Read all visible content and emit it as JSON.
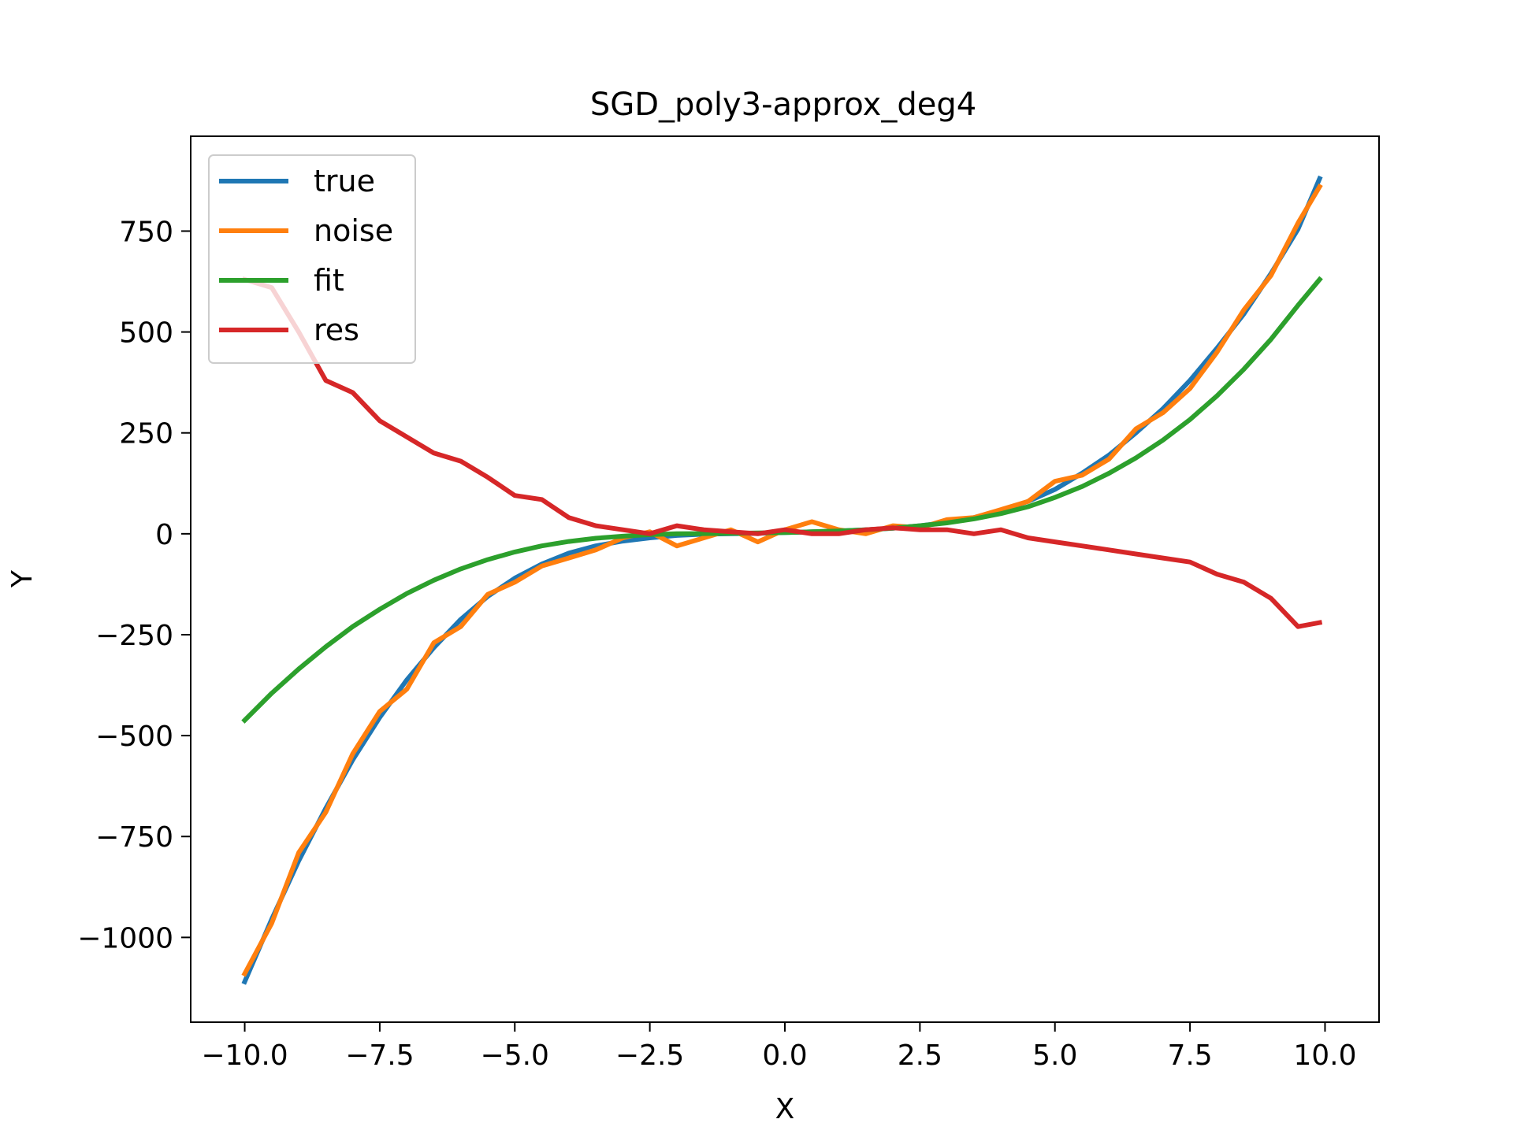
{
  "chart_data": {
    "type": "line",
    "title": "SGD_poly3-approx_deg4",
    "xlabel": "X",
    "ylabel": "Y",
    "xlim": [
      -11.0,
      11.0
    ],
    "ylim": [
      -1210,
      985
    ],
    "xticks": [
      -10.0,
      -7.5,
      -5.0,
      -2.5,
      0.0,
      2.5,
      5.0,
      7.5,
      10.0
    ],
    "xtick_labels": [
      "−10.0",
      "−7.5",
      "−5.0",
      "−2.5",
      "0.0",
      "2.5",
      "5.0",
      "7.5",
      "10.0"
    ],
    "yticks": [
      -1000,
      -750,
      -500,
      -250,
      0,
      250,
      500,
      750
    ],
    "ytick_labels": [
      "−1000",
      "−750",
      "−500",
      "−250",
      "0",
      "250",
      "500",
      "750"
    ],
    "grid": false,
    "legend_position": "top-left",
    "x": [
      -10,
      -9.5,
      -9,
      -8.5,
      -8,
      -7.5,
      -7,
      -6.5,
      -6,
      -5.5,
      -5,
      -4.5,
      -4,
      -3.5,
      -3,
      -2.5,
      -2,
      -1.5,
      -1,
      -0.5,
      0,
      0.5,
      1,
      1.5,
      2,
      2.5,
      3,
      3.5,
      4,
      4.5,
      5,
      5.5,
      6,
      6.5,
      7,
      7.5,
      8,
      8.5,
      9,
      9.5,
      9.9
    ],
    "series": [
      {
        "name": "true",
        "color": "#1f77b4",
        "values": [
          -1110,
          -955,
          -810,
          -680,
          -560,
          -455,
          -362,
          -282,
          -212,
          -155,
          -110,
          -75,
          -48,
          -30,
          -18,
          -10,
          -4,
          -1,
          0,
          1,
          3,
          5,
          7,
          10,
          14,
          20,
          28,
          40,
          58,
          80,
          110,
          150,
          195,
          250,
          310,
          380,
          460,
          545,
          645,
          755,
          880
        ]
      },
      {
        "name": "noise",
        "color": "#ff7f0e",
        "values": [
          -1090,
          -965,
          -790,
          -690,
          -545,
          -440,
          -385,
          -270,
          -230,
          -150,
          -120,
          -80,
          -60,
          -40,
          -10,
          5,
          -30,
          -10,
          10,
          -20,
          10,
          30,
          10,
          0,
          20,
          15,
          35,
          40,
          60,
          80,
          130,
          145,
          185,
          260,
          300,
          360,
          450,
          555,
          640,
          770,
          860
        ]
      },
      {
        "name": "fit",
        "color": "#2ca02c",
        "values": [
          -462,
          -395,
          -335,
          -280,
          -230,
          -187,
          -148,
          -115,
          -87,
          -64,
          -45,
          -30,
          -19,
          -11,
          -6,
          -2,
          0,
          0.5,
          1,
          2,
          3,
          5,
          7,
          10,
          14,
          20,
          27,
          37,
          50,
          67,
          90,
          117,
          150,
          188,
          232,
          283,
          342,
          408,
          482,
          566,
          630
        ]
      },
      {
        "name": "res",
        "color": "#d62728",
        "values": [
          630,
          610,
          500,
          380,
          350,
          280,
          240,
          200,
          180,
          140,
          95,
          85,
          40,
          20,
          10,
          0,
          20,
          10,
          5,
          0,
          10,
          0,
          0,
          10,
          15,
          10,
          10,
          0,
          10,
          -10,
          -20,
          -30,
          -40,
          -50,
          -60,
          -70,
          -100,
          -120,
          -160,
          -230,
          -220
        ]
      }
    ]
  }
}
